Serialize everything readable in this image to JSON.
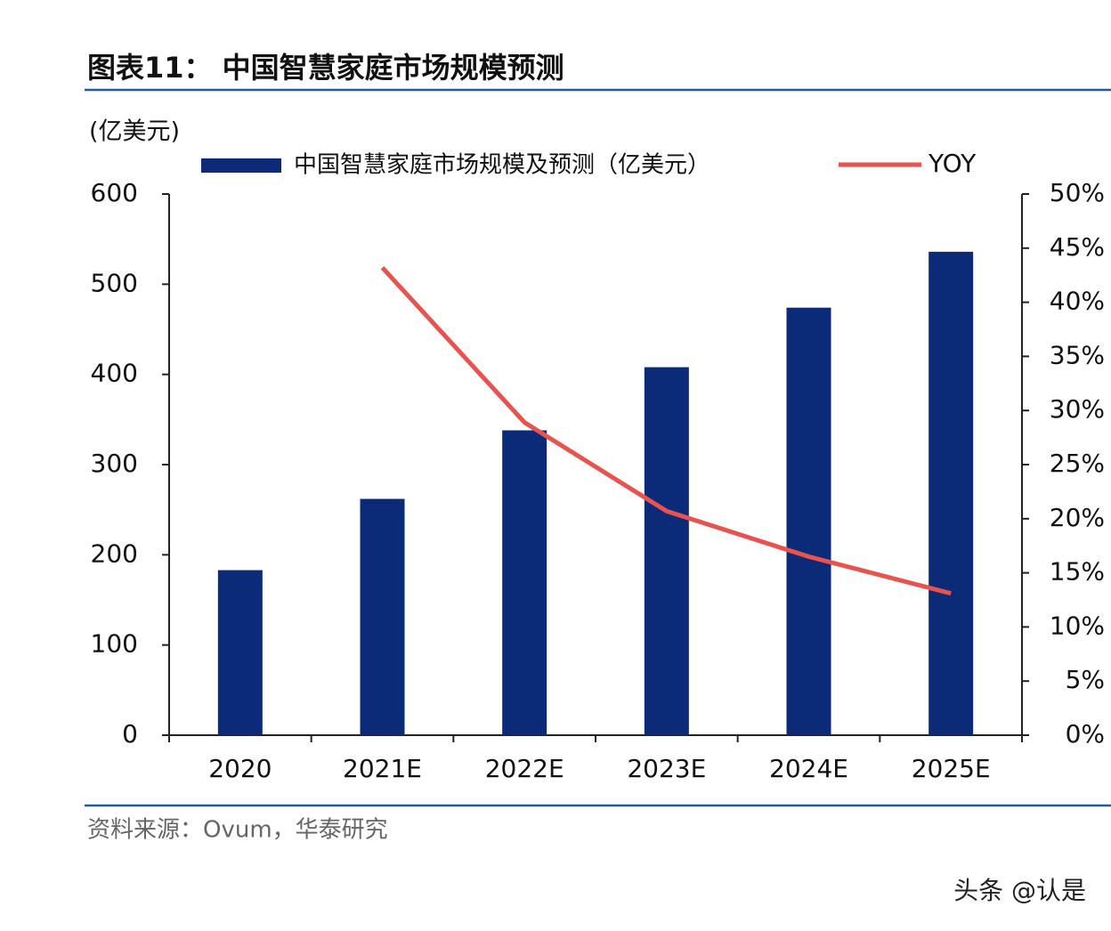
{
  "chart_data": {
    "type": "bar-line",
    "title": "图表11：  中国智慧家庭市场规模预测",
    "y_label": "(亿美元)",
    "categories": [
      "2020",
      "2021E",
      "2022E",
      "2023E",
      "2024E",
      "2025E"
    ],
    "series": [
      {
        "name": "中国智慧家庭市场规模及预测（亿美元）",
        "color": "#0b2a78",
        "type": "bar",
        "values": [
          183,
          262,
          338,
          408,
          474,
          536
        ]
      },
      {
        "name": "YOY",
        "color": "#e8534f",
        "type": "line",
        "axis": "y2",
        "values": [
          null,
          43.2,
          28.9,
          20.7,
          16.5,
          13.1
        ]
      }
    ],
    "ylim": [
      0,
      600
    ],
    "yticks": [
      0,
      100,
      200,
      300,
      400,
      500,
      600
    ],
    "y2lim": [
      0,
      50
    ],
    "y2ticks": [
      {
        "value": 0,
        "label": "0%"
      },
      {
        "value": 5,
        "label": "5%"
      },
      {
        "value": 10,
        "label": "10%"
      },
      {
        "value": 15,
        "label": "15%"
      },
      {
        "value": 20,
        "label": "20%"
      },
      {
        "value": 25,
        "label": "25%"
      },
      {
        "value": 30,
        "label": "30%"
      },
      {
        "value": 35,
        "label": "35%"
      },
      {
        "value": 40,
        "label": "40%"
      },
      {
        "value": 45,
        "label": "45%"
      },
      {
        "value": 50,
        "label": "50%"
      }
    ],
    "source": "资料来源：Ovum，华泰研究"
  },
  "watermark": "头条 @认是"
}
